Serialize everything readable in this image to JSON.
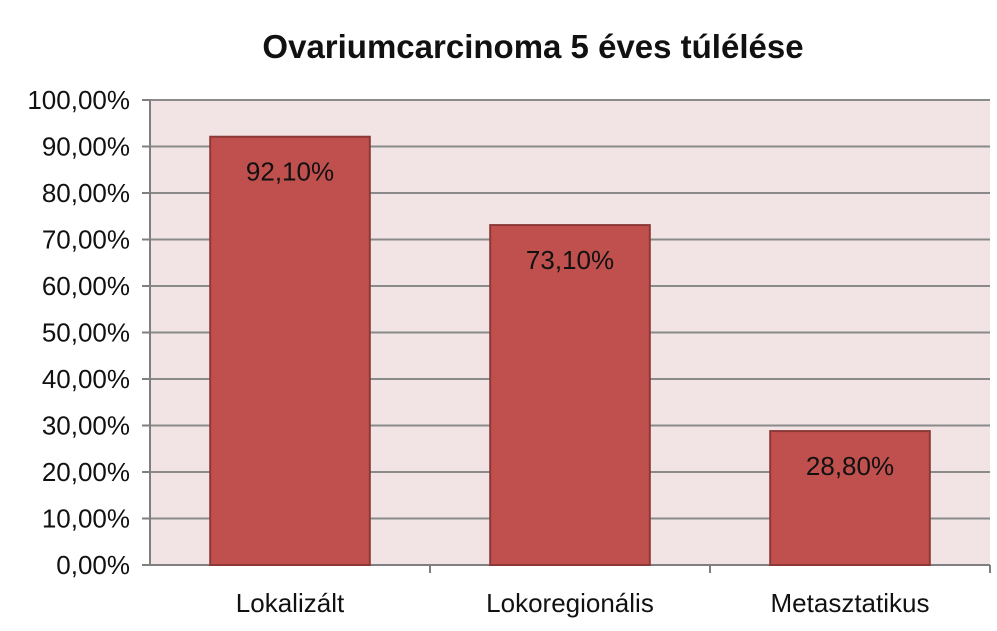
{
  "chart_data": {
    "type": "bar",
    "title": "Ovariumcarcinoma 5 éves túlélése",
    "xlabel": "",
    "ylabel": "",
    "categories": [
      "Lokalizált",
      "Lokoregionális",
      "Metasztatikus"
    ],
    "values": [
      92.1,
      73.1,
      28.8
    ],
    "data_labels": [
      "92,10%",
      "73,10%",
      "28,80%"
    ],
    "ylim": [
      0,
      100
    ],
    "yticks": [
      0,
      10,
      20,
      30,
      40,
      50,
      60,
      70,
      80,
      90,
      100
    ],
    "ytick_labels": [
      "0,00%",
      "10,00%",
      "20,00%",
      "30,00%",
      "40,00%",
      "50,00%",
      "60,00%",
      "70,00%",
      "80,00%",
      "90,00%",
      "100,00%"
    ],
    "grid": true,
    "legend": "none",
    "colors": {
      "bar_fill": "#c0504d",
      "bar_stroke": "#8c3836",
      "plot_background": "#f2e4e4",
      "gridline": "#8a8a8a",
      "axis": "#7f7f7f"
    }
  }
}
